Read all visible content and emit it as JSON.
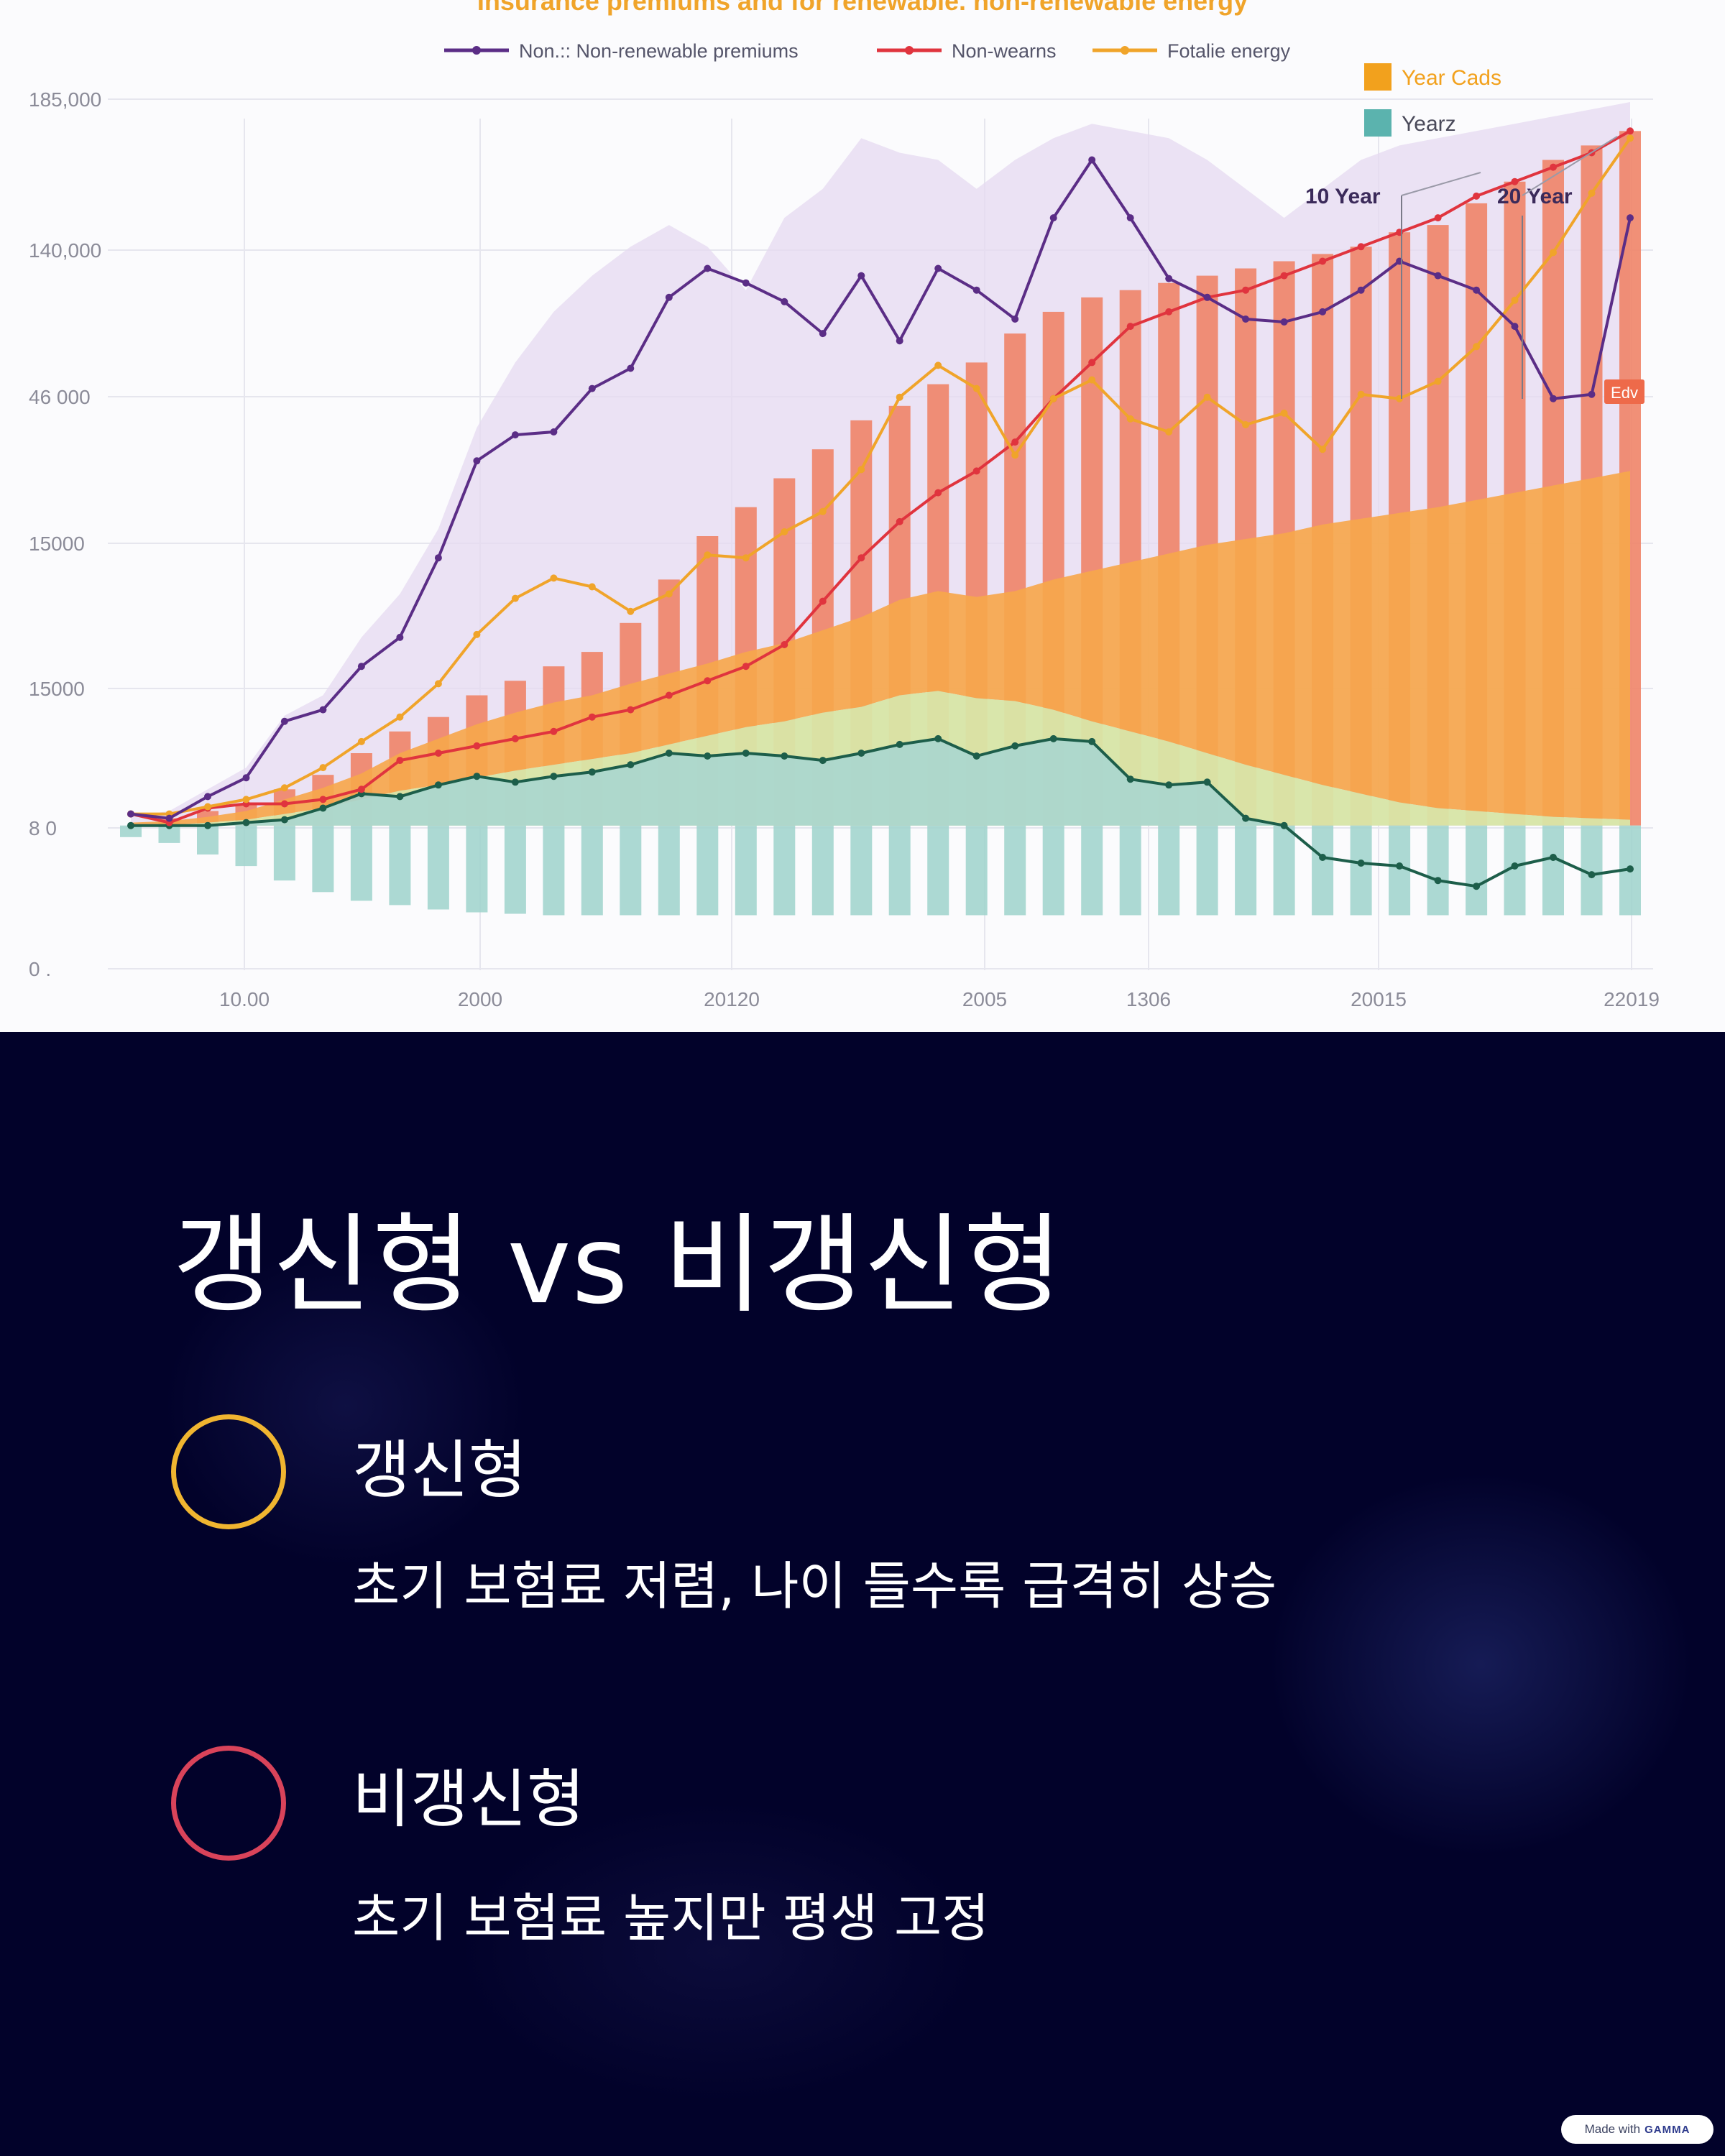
{
  "chart_data": {
    "type": "bar+line+area",
    "title": "Insurance premiums and for renewable. non-renewable energy",
    "legend": {
      "placement": "top",
      "entries": [
        {
          "label": "Non.:: Non-renewable premiums",
          "color": "#5b2d86"
        },
        {
          "label": "Non-wearns",
          "color": "#e0343e"
        },
        {
          "label": "Fotalie energy",
          "color": "#f0a42a"
        }
      ]
    },
    "legend_right": [
      {
        "label": "Year Cads",
        "color": "#f2a11d"
      },
      {
        "label": "Yearz",
        "color": "#5bb3ae"
      }
    ],
    "annotations": [
      {
        "text": "10 Year",
        "color": "#3b2a5a"
      },
      {
        "text": "20 Year",
        "color": "#3b2a5a"
      },
      {
        "text": "Edv",
        "color": "#ffffff",
        "bg": "#ee6a4a"
      }
    ],
    "y_ticks": [
      "185,000",
      "140,000",
      "46 000",
      "15000",
      "15000",
      "8 0",
      "0 ."
    ],
    "x_ticks": [
      "10.00",
      "2000",
      "20120",
      "2005",
      "1306",
      "20015",
      "22019"
    ],
    "grid": true,
    "x_index_range": [
      0,
      39
    ],
    "y_scale_range": [
      0,
      600
    ],
    "series": [
      {
        "name": "Non.:: Non-renewable premiums",
        "kind": "line",
        "color": "#5b2d86",
        "values": [
          108,
          105,
          120,
          133,
          172,
          180,
          210,
          230,
          285,
          352,
          370,
          372,
          402,
          416,
          465,
          485,
          475,
          462,
          440,
          480,
          435,
          485,
          470,
          450,
          520,
          560,
          520,
          478,
          465,
          450,
          448,
          455,
          470,
          490,
          480,
          470,
          445,
          395,
          398,
          520
        ]
      },
      {
        "name": "Purple area upper bound",
        "kind": "area",
        "color": "#e6daf0",
        "values": [
          106,
          110,
          125,
          140,
          176,
          190,
          230,
          260,
          305,
          375,
          420,
          455,
          480,
          500,
          515,
          500,
          470,
          520,
          540,
          575,
          565,
          560,
          540,
          560,
          575,
          585,
          580,
          575,
          560,
          540,
          520,
          540,
          560,
          570,
          575,
          580,
          585,
          590,
          595,
          600
        ]
      },
      {
        "name": "Non-wearns",
        "kind": "line",
        "color": "#e0343e",
        "values": [
          108,
          102,
          112,
          115,
          115,
          118,
          125,
          145,
          150,
          155,
          160,
          165,
          175,
          180,
          190,
          200,
          210,
          225,
          255,
          285,
          310,
          330,
          345,
          365,
          395,
          420,
          445,
          455,
          465,
          470,
          480,
          490,
          500,
          510,
          520,
          535,
          545,
          555,
          565,
          580
        ]
      },
      {
        "name": "Fotalie energy",
        "kind": "line",
        "color": "#f0a42a",
        "values": [
          108,
          108,
          113,
          118,
          126,
          140,
          158,
          175,
          198,
          232,
          257,
          271,
          265,
          248,
          260,
          287,
          285,
          303,
          317,
          346,
          396,
          418,
          402,
          356,
          395,
          408,
          381,
          372,
          396,
          377,
          385,
          360,
          398,
          395,
          407,
          431,
          463,
          496,
          537,
          575
        ]
      },
      {
        "name": "Year Cads",
        "kind": "bar",
        "color": "#ef8468",
        "values": [
          100,
          105,
          110,
          115,
          125,
          135,
          150,
          165,
          175,
          190,
          200,
          210,
          220,
          240,
          270,
          300,
          320,
          340,
          360,
          380,
          390,
          405,
          420,
          440,
          455,
          465,
          470,
          475,
          480,
          485,
          490,
          495,
          500,
          510,
          515,
          530,
          545,
          560,
          570,
          580
        ]
      },
      {
        "name": "Orange band top",
        "kind": "area",
        "color": "#f6a74c",
        "values": [
          102,
          103,
          106,
          110,
          118,
          126,
          136,
          150,
          160,
          170,
          178,
          185,
          190,
          198,
          205,
          212,
          220,
          226,
          235,
          244,
          256,
          262,
          258,
          262,
          270,
          276,
          282,
          288,
          294,
          298,
          302,
          308,
          312,
          316,
          320,
          325,
          330,
          335,
          340,
          345
        ]
      },
      {
        "name": "Green band top",
        "kind": "area",
        "color": "#d8e6a6",
        "values": [
          100,
          100,
          102,
          104,
          108,
          112,
          118,
          124,
          128,
          133,
          138,
          142,
          146,
          150,
          156,
          162,
          168,
          172,
          178,
          182,
          190,
          193,
          188,
          186,
          180,
          172,
          165,
          158,
          150,
          142,
          135,
          128,
          122,
          116,
          112,
          110,
          108,
          106,
          105,
          104
        ]
      },
      {
        "name": "Yearz",
        "kind": "bar",
        "color": "#9dd2cb",
        "values": [
          -8,
          -12,
          -20,
          -28,
          -38,
          -46,
          -52,
          -55,
          -58,
          -60,
          -61,
          -62,
          -62,
          -62,
          -62,
          -62,
          -62,
          -62,
          -62,
          -62,
          -62,
          -62,
          -62,
          -62,
          -62,
          -62,
          -62,
          -62,
          -62,
          -62,
          -62,
          -62,
          -62,
          -62,
          -62,
          -62,
          -62,
          -62,
          -62,
          -62
        ]
      },
      {
        "name": "Dark green line",
        "kind": "line",
        "color": "#1d5e4a",
        "values": [
          100,
          100,
          100,
          102,
          104,
          112,
          122,
          120,
          128,
          134,
          130,
          134,
          137,
          142,
          150,
          148,
          150,
          148,
          145,
          150,
          156,
          160,
          148,
          155,
          160,
          158,
          132,
          128,
          130,
          105,
          100,
          78,
          74,
          72,
          62,
          58,
          72,
          78,
          66,
          70
        ]
      }
    ]
  },
  "slide": {
    "title": "갱신형 vs 비갱신형",
    "options": [
      {
        "heading": "갱신형",
        "desc": "초기 보험료 저렴, 나이 들수록 급격히 상승",
        "ring_color": "#f0b530"
      },
      {
        "heading": "비갱신형",
        "desc": "초기 보험료 높지만 평생 고정",
        "ring_color": "#d9435a"
      }
    ]
  },
  "badge": {
    "prefix": "Made with",
    "brand": "GAMMA"
  }
}
